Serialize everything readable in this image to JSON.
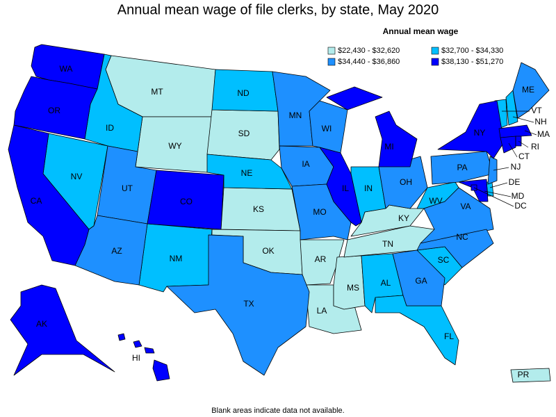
{
  "title": "Annual mean wage of file clerks, by state, May 2020",
  "legend": {
    "title": "Annual mean wage",
    "items": [
      {
        "label": "$22,430 - $32,620",
        "color": "#b3ecec",
        "states": [
          "MT",
          "WY",
          "SD",
          "KS",
          "OK",
          "AR",
          "LA",
          "MS",
          "TN",
          "KY",
          "PR"
        ]
      },
      {
        "label": "$32,700 - $34,330",
        "color": "#00bfff",
        "states": [
          "ID",
          "NV",
          "ND",
          "NE",
          "NM",
          "IN",
          "WV",
          "AL",
          "FL",
          "SC",
          "NH",
          "VT",
          "DE"
        ]
      },
      {
        "label": "$34,440 - $36,860",
        "color": "#1e90ff",
        "states": [
          "UT",
          "AZ",
          "TX",
          "MN",
          "IA",
          "MO",
          "WI",
          "OH",
          "PA",
          "VA",
          "NC",
          "GA",
          "ME",
          "NJ"
        ]
      },
      {
        "label": "$38,130 - $51,270",
        "color": "#0000ff",
        "states": [
          "WA",
          "OR",
          "CA",
          "AK",
          "HI",
          "CO",
          "IL",
          "MI",
          "NY",
          "MA",
          "CT",
          "RI",
          "MD",
          "DC"
        ]
      }
    ]
  },
  "footnote": "Blank areas indicate data not available."
}
